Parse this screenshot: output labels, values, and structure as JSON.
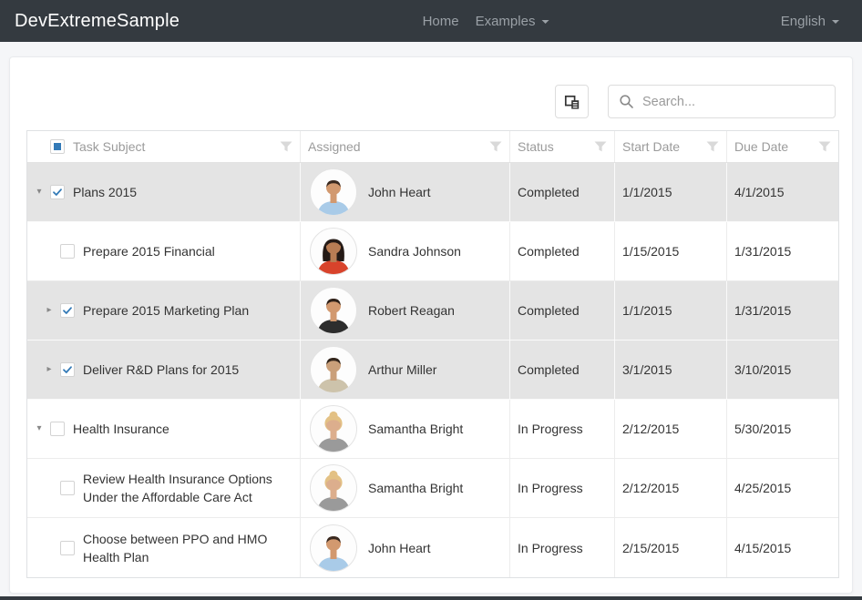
{
  "navbar": {
    "brand": "DevExtremeSample",
    "items": [
      {
        "label": "Home",
        "caret": false
      },
      {
        "label": "Examples",
        "caret": true
      }
    ],
    "language": "English"
  },
  "toolbar": {
    "column_chooser_icon": "column-chooser-icon",
    "search_icon": "search-icon",
    "search_placeholder": "Search...",
    "search_value": ""
  },
  "icons": {
    "expanded": "▾",
    "collapsed": "▸"
  },
  "colors": {
    "accent": "#337ab7",
    "navbar_bg": "#343a40",
    "selected_row_bg": "#e4e4e4",
    "header_text": "#9b9b9b",
    "funnel": "#d9d9d9"
  },
  "grid": {
    "header_checkbox_state": "indeterminate",
    "columns": [
      {
        "label": "Task Subject"
      },
      {
        "label": "Assigned"
      },
      {
        "label": "Status"
      },
      {
        "label": "Start Date"
      },
      {
        "label": "Due Date"
      }
    ],
    "rows": [
      {
        "level": 0,
        "expander": "expanded",
        "checked": true,
        "selected": true,
        "subject": "Plans 2015",
        "assignee": "John Heart",
        "status": "Completed",
        "start": "1/1/2015",
        "due": "4/1/2015",
        "avatar": {
          "skin": "#d2996f",
          "hair": "#3a2a20",
          "shirt": "#a9cbe8",
          "hairstyle": "short"
        }
      },
      {
        "level": 1,
        "expander": null,
        "checked": false,
        "selected": false,
        "subject": "Prepare 2015 Financial",
        "assignee": "Sandra Johnson",
        "status": "Completed",
        "start": "1/15/2015",
        "due": "1/31/2015",
        "avatar": {
          "skin": "#b97d54",
          "hair": "#241a16",
          "shirt": "#d8432b",
          "hairstyle": "long"
        }
      },
      {
        "level": 1,
        "expander": "collapsed",
        "checked": true,
        "selected": true,
        "subject": "Prepare 2015 Marketing Plan",
        "assignee": "Robert Reagan",
        "status": "Completed",
        "start": "1/1/2015",
        "due": "1/31/2015",
        "avatar": {
          "skin": "#d2996f",
          "hair": "#2e2119",
          "shirt": "#2d2d2d",
          "hairstyle": "short"
        }
      },
      {
        "level": 1,
        "expander": "collapsed",
        "checked": true,
        "selected": true,
        "subject": "Deliver R&D Plans for 2015",
        "assignee": "Arthur Miller",
        "status": "Completed",
        "start": "3/1/2015",
        "due": "3/10/2015",
        "avatar": {
          "skin": "#caa07a",
          "hair": "#33261c",
          "shirt": "#cdc3ab",
          "hairstyle": "short"
        }
      },
      {
        "level": 0,
        "expander": "expanded",
        "checked": false,
        "selected": false,
        "subject": "Health Insurance",
        "assignee": "Samantha Bright",
        "status": "In Progress",
        "start": "2/12/2015",
        "due": "5/30/2015",
        "avatar": {
          "skin": "#dcae8d",
          "hair": "#e3c184",
          "shirt": "#9a9a9a",
          "hairstyle": "updo"
        }
      },
      {
        "level": 1,
        "expander": null,
        "checked": false,
        "selected": false,
        "subject": "Review Health Insurance Options Under the Affordable Care Act",
        "assignee": "Samantha Bright",
        "status": "In Progress",
        "start": "2/12/2015",
        "due": "4/25/2015",
        "avatar": {
          "skin": "#dcae8d",
          "hair": "#e3c184",
          "shirt": "#9a9a9a",
          "hairstyle": "updo"
        }
      },
      {
        "level": 1,
        "expander": null,
        "checked": false,
        "selected": false,
        "subject": "Choose between PPO and HMO Health Plan",
        "assignee": "John Heart",
        "status": "In Progress",
        "start": "2/15/2015",
        "due": "4/15/2015",
        "avatar": {
          "skin": "#d2996f",
          "hair": "#3a2a20",
          "shirt": "#a9cbe8",
          "hairstyle": "short"
        }
      }
    ]
  }
}
